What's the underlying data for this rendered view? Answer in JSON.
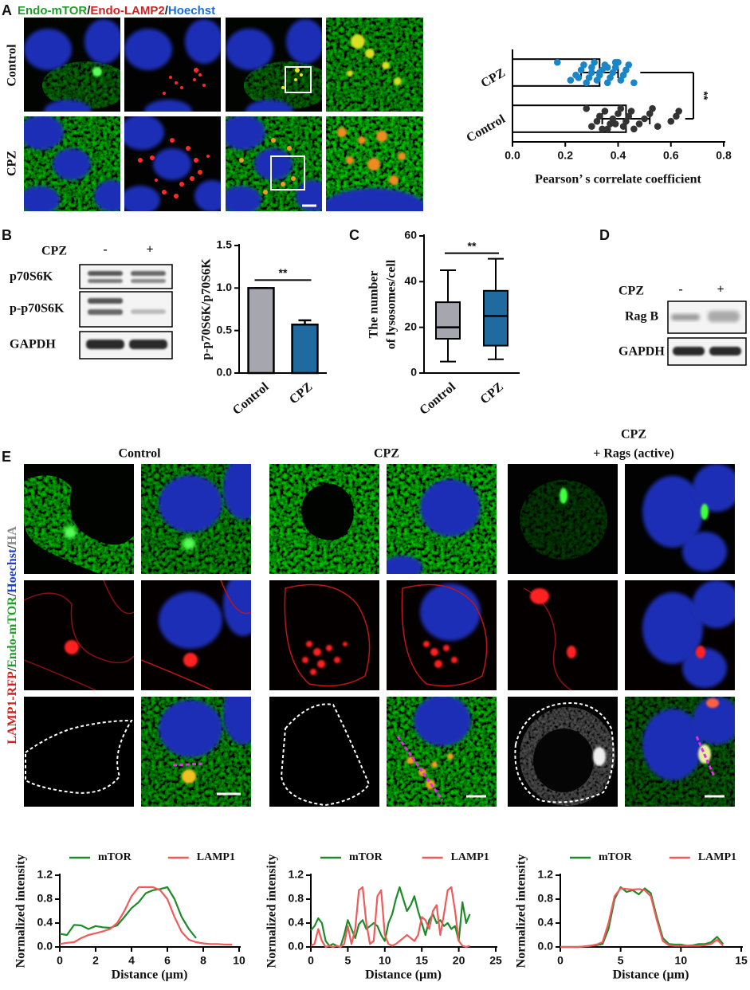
{
  "panels": {
    "A": {
      "label": "A",
      "title_parts": [
        "Endo-mTOR",
        "/",
        "Endo-LAMP2",
        "/",
        "Hoechst"
      ],
      "title_colors": [
        "#1f9e2a",
        "#222222",
        "#d42020",
        "#222222",
        "#1b6fd0"
      ],
      "rows": [
        "Control",
        "CPZ"
      ]
    },
    "B": {
      "label": "B",
      "blot": {
        "treatment": "CPZ",
        "lanes": [
          "-",
          "+"
        ],
        "bands": [
          "p70S6K",
          "p-p70S6K",
          "GAPDH"
        ]
      }
    },
    "C": {
      "label": "C"
    },
    "D": {
      "label": "D",
      "blot": {
        "treatment": "CPZ",
        "lanes": [
          "-",
          "+"
        ],
        "bands": [
          "Rag B",
          "GAPDH"
        ]
      }
    },
    "E": {
      "label": "E",
      "groups": [
        {
          "title": "Control"
        },
        {
          "title": "CPZ"
        },
        {
          "title": "CPZ",
          "subtitle": "+ Rags (active)"
        }
      ],
      "side_label_parts": [
        "LAMP1-RFP",
        "/",
        "Endo-mTOR",
        "/",
        "Hoechst",
        "/",
        "HA"
      ],
      "side_label_colors": [
        "#d42020",
        "#222222",
        "#1f9e2a",
        "#222222",
        "#1b3fd0",
        "#222222",
        "#8a8a8a"
      ]
    }
  },
  "chart_data": [
    {
      "type": "hbar",
      "categories": [
        "CPZ",
        "Control"
      ],
      "values": [
        0.33,
        0.43
      ],
      "errors": [
        0.07,
        0.09
      ],
      "points": [
        [
          0.17,
          0.22,
          0.24,
          0.26,
          0.27,
          0.28,
          0.29,
          0.3,
          0.3,
          0.31,
          0.32,
          0.33,
          0.34,
          0.35,
          0.36,
          0.37,
          0.38,
          0.39,
          0.4,
          0.41,
          0.42,
          0.43,
          0.44,
          0.46,
          0.25,
          0.33,
          0.36,
          0.39
        ],
        [
          0.28,
          0.3,
          0.32,
          0.33,
          0.35,
          0.36,
          0.37,
          0.38,
          0.4,
          0.41,
          0.42,
          0.43,
          0.44,
          0.45,
          0.46,
          0.48,
          0.5,
          0.52,
          0.53,
          0.55,
          0.6,
          0.62,
          0.63,
          0.34,
          0.39
        ]
      ],
      "point_colors": [
        "#1a86c7",
        "#333333"
      ],
      "color": "#ffffff",
      "xlabel": "Pearson’ s correlate coefficient",
      "xlim": [
        0,
        0.8
      ],
      "xticks": [
        {
          "value": 0,
          "label": "0.0"
        },
        0.2,
        0.4,
        0.6,
        0.8
      ],
      "annotation": "**"
    },
    {
      "type": "bar",
      "categories": [
        "Control",
        "CPZ"
      ],
      "values": [
        1.0,
        0.57
      ],
      "errors": [
        0,
        0.05
      ],
      "colors": [
        "#a6a6ae",
        "#1f6a9e"
      ],
      "ylabel": "p-p70S6K/p70S6K",
      "ylim": [
        0,
        1.5
      ],
      "yticks": [
        {
          "value": 0,
          "label": "0.0"
        },
        0.5,
        {
          "value": 1,
          "label": "1.0"
        },
        1.5
      ],
      "annotation": "**"
    },
    {
      "type": "box",
      "categories": [
        "Control",
        "CPZ"
      ],
      "boxes": [
        {
          "min": 5,
          "q1": 15,
          "median": 20,
          "q3": 31,
          "max": 45
        },
        {
          "min": 6,
          "q1": 12,
          "median": 25,
          "q3": 36,
          "max": 50
        }
      ],
      "colors": [
        "#a6a6ae",
        "#1f6a9e"
      ],
      "ylabel": [
        "The number",
        "of lysosomes/cell"
      ],
      "ylim": [
        0,
        60
      ],
      "yticks": [
        0,
        20,
        40,
        60
      ],
      "annotation": "**"
    },
    {
      "type": "line",
      "xlabel": "Distance (µm)",
      "ylabel": "Normalized intensity",
      "x": [
        0,
        0.4,
        0.8,
        1.2,
        1.6,
        2.0,
        2.4,
        2.8,
        3.2,
        3.6,
        4.0,
        4.4,
        4.8,
        5.2,
        5.6,
        6.0,
        6.4,
        6.8,
        7.2,
        7.6,
        8.0,
        8.4,
        8.8,
        9.2,
        9.6
      ],
      "series": [
        {
          "name": "mTOR",
          "color": "#1e8a2a",
          "values": [
            0.22,
            0.2,
            0.37,
            0.36,
            0.3,
            0.35,
            0.33,
            0.32,
            0.36,
            0.5,
            0.65,
            0.75,
            0.9,
            0.95,
            0.97,
            1.0,
            0.8,
            0.5,
            0.3,
            0.15,
            null,
            null,
            null,
            null,
            null
          ]
        },
        {
          "name": "LAMP1",
          "color": "#f05a5a",
          "values": [
            0.05,
            0.07,
            0.08,
            0.15,
            0.2,
            0.23,
            0.26,
            0.3,
            0.4,
            0.6,
            0.85,
            1.0,
            1.0,
            1.0,
            0.95,
            0.8,
            0.5,
            0.25,
            0.12,
            0.08,
            0.06,
            0.05,
            0.05,
            0.04,
            0.04
          ]
        }
      ],
      "xlim": [
        0,
        10
      ],
      "xticks": [
        0,
        2,
        4,
        6,
        8,
        10
      ],
      "ylim": [
        0,
        1.2
      ],
      "yticks": [
        {
          "value": 0,
          "label": "0.0"
        },
        0.4,
        0.8,
        1.2
      ]
    },
    {
      "type": "line",
      "xlabel": "Distance (µm)",
      "ylabel": "Normalized intensity",
      "x": [
        0,
        0.5,
        1,
        1.5,
        2,
        2.5,
        3,
        3.5,
        4,
        4.5,
        5,
        5.5,
        6,
        6.5,
        7,
        7.5,
        8,
        8.5,
        9,
        9.5,
        10,
        10.5,
        11,
        11.5,
        12,
        12.5,
        13,
        13.5,
        14,
        14.5,
        15,
        15.5,
        16,
        16.5,
        17,
        17.5,
        18,
        18.5,
        19,
        19.5,
        20,
        20.5,
        21,
        21.5
      ],
      "series": [
        {
          "name": "mTOR",
          "color": "#1e8a2a",
          "values": [
            0.28,
            0.35,
            0.48,
            0.4,
            0.1,
            0.02,
            0.05,
            0.02,
            0.0,
            0.2,
            0.45,
            0.3,
            0.15,
            0.38,
            0.45,
            0.3,
            0.35,
            0.4,
            0.35,
            0.2,
            0.1,
            0.4,
            0.55,
            0.8,
            1.0,
            0.8,
            0.6,
            0.7,
            0.85,
            0.6,
            0.4,
            0.2,
            0.45,
            0.55,
            0.4,
            0.45,
            0.35,
            0.4,
            0.3,
            0.35,
            0.1,
            0.75,
            0.4,
            0.55
          ]
        },
        {
          "name": "LAMP1",
          "color": "#f05a5a",
          "values": [
            0.02,
            0.05,
            0.3,
            0.1,
            0.0,
            0.02,
            0.0,
            0.02,
            0.0,
            0.05,
            0.35,
            0.05,
            0.3,
            0.95,
            1.0,
            0.4,
            0.05,
            0.1,
            0.85,
            0.95,
            0.2,
            0.05,
            0.02,
            0.05,
            0.1,
            0.15,
            0.2,
            0.15,
            0.1,
            0.2,
            0.5,
            0.45,
            0.3,
            0.6,
            0.7,
            0.2,
            0.55,
            0.95,
            1.0,
            0.6,
            0.1,
            0.02,
            0.0,
            0.02
          ]
        }
      ],
      "xlim": [
        0,
        25
      ],
      "xticks": [
        0,
        5,
        10,
        15,
        20,
        25
      ],
      "ylim": [
        0,
        1.2
      ],
      "yticks": [
        {
          "value": 0,
          "label": "0.0"
        },
        0.4,
        0.8,
        1.2
      ]
    },
    {
      "type": "line",
      "xlabel": "Distance (µm)",
      "ylabel": "Normalized intensity",
      "x": [
        0,
        0.5,
        1,
        1.5,
        2,
        2.5,
        3,
        3.5,
        4,
        4.5,
        5,
        5.5,
        6,
        6.5,
        7,
        7.5,
        8,
        8.5,
        9,
        9.5,
        10,
        10.5,
        11,
        11.5,
        12,
        12.5,
        13,
        13.5
      ],
      "series": [
        {
          "name": "mTOR",
          "color": "#1e8a2a",
          "values": [
            0.0,
            0.0,
            0.0,
            0.0,
            0.01,
            0.02,
            0.03,
            0.05,
            0.3,
            0.8,
            1.0,
            0.92,
            0.95,
            0.88,
            0.98,
            0.9,
            0.5,
            0.15,
            0.05,
            0.04,
            0.04,
            0.02,
            0.03,
            0.05,
            0.05,
            0.08,
            0.17,
            0.05
          ]
        },
        {
          "name": "LAMP1",
          "color": "#f05a5a",
          "values": [
            0.0,
            0.0,
            0.0,
            0.0,
            0.01,
            0.02,
            0.04,
            0.08,
            0.4,
            0.85,
            0.98,
            0.97,
            0.96,
            0.97,
            0.95,
            0.85,
            0.45,
            0.1,
            0.03,
            0.02,
            0.02,
            0.02,
            0.02,
            0.02,
            0.03,
            0.05,
            0.12,
            0.02
          ]
        }
      ],
      "xlim": [
        0,
        15
      ],
      "xticks": [
        0,
        5,
        10,
        15
      ],
      "ylim": [
        0,
        1.2
      ],
      "yticks": [
        {
          "value": 0,
          "label": "0.0"
        },
        0.4,
        0.8,
        1.2
      ]
    }
  ]
}
